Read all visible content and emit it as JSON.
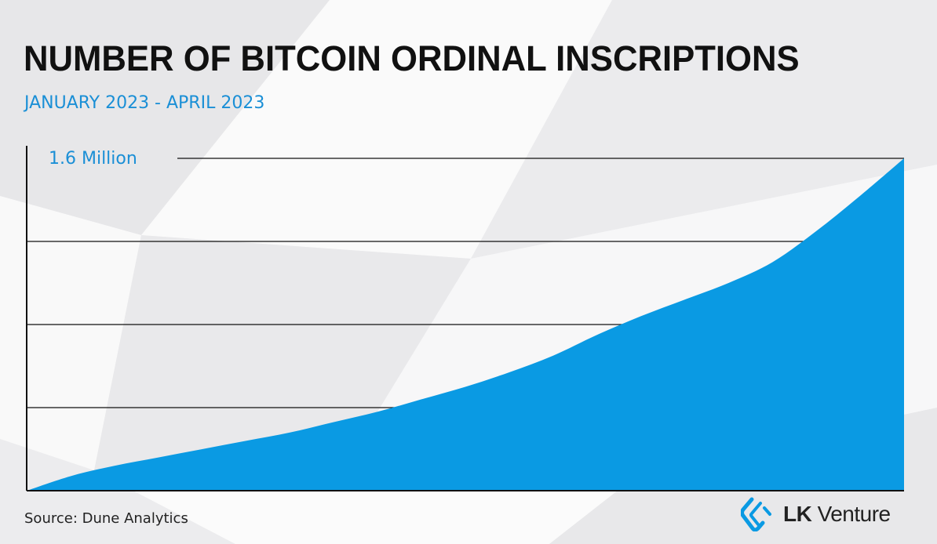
{
  "header": {
    "title": "NUMBER OF BITCOIN ORDINAL INSCRIPTIONS",
    "subtitle": "JANUARY 2023 - APRIL 2023"
  },
  "colors": {
    "accent": "#0a9ae3",
    "title": "#111111",
    "subtitle": "#1a8fd6",
    "axis": "#111111"
  },
  "chart_data": {
    "type": "area",
    "title": "NUMBER OF BITCOIN ORDINAL INSCRIPTIONS",
    "subtitle": "JANUARY 2023 - APRIL 2023",
    "xlabel": "",
    "ylabel": "",
    "y_tick_labels": [
      "1.6 Million"
    ],
    "ylim": [
      0,
      1.6
    ],
    "y_unit": "Million",
    "grid": true,
    "legend": "none",
    "series": [
      {
        "x": [
          0.0,
          0.05,
          0.1,
          0.15,
          0.2,
          0.25,
          0.3,
          0.35,
          0.4,
          0.45,
          0.5,
          0.55,
          0.6,
          0.65,
          0.7,
          0.75,
          0.8,
          0.85,
          0.9,
          0.95,
          1.0
        ],
        "values": [
          0.0,
          0.07,
          0.12,
          0.16,
          0.2,
          0.24,
          0.28,
          0.33,
          0.38,
          0.44,
          0.5,
          0.57,
          0.65,
          0.75,
          0.84,
          0.92,
          1.0,
          1.1,
          1.25,
          1.42,
          1.6
        ]
      }
    ]
  },
  "footer": {
    "source": "Source: Dune Analytics",
    "logo_bold": "LK",
    "logo_rest": " Venture"
  }
}
